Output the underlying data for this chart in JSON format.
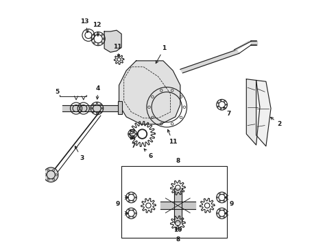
{
  "bg_color": "#ffffff",
  "line_color": "#1a1a1a",
  "lw": 0.8,
  "fs": 6.5
}
